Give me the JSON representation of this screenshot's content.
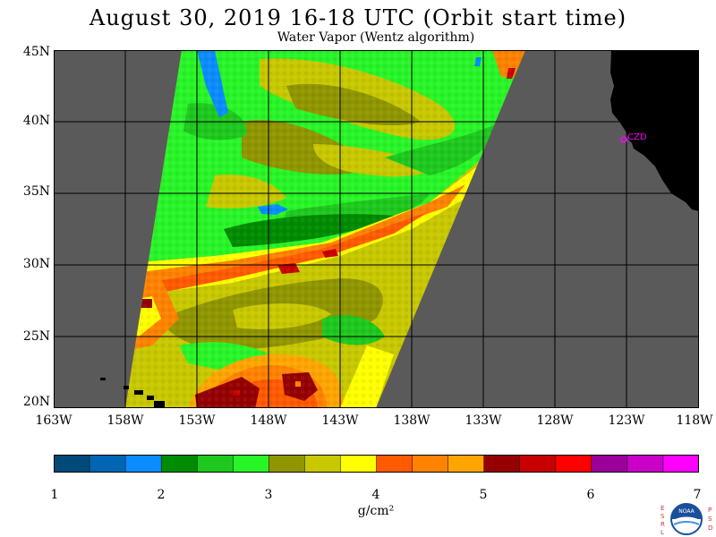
{
  "title": "August 30, 2019  16-18 UTC  (Orbit start time)",
  "subtitle": "Water Vapor (Wentz algorithm)",
  "lat_labels": [
    "45N",
    "40N",
    "35N",
    "30N",
    "25N",
    "20N"
  ],
  "lon_labels": [
    "163W",
    "158W",
    "153W",
    "148W",
    "143W",
    "138W",
    "133W",
    "128W",
    "123W",
    "118W"
  ],
  "station_label": "CZD",
  "colorbar": {
    "ticks": [
      "1",
      "2",
      "3",
      "4",
      "5",
      "6",
      "7"
    ],
    "units": "g/cm²",
    "colors": [
      "#004a7a",
      "#0066b4",
      "#0a8cff",
      "#008c00",
      "#1ec81e",
      "#28f528",
      "#909600",
      "#c8c800",
      "#ffff00",
      "#ff5a00",
      "#ff8200",
      "#ffa500",
      "#960000",
      "#c80000",
      "#ff0000",
      "#9b009b",
      "#c800c8",
      "#ff00ff"
    ]
  },
  "colors": {
    "missing": "#5a5a5a",
    "land": "#000000",
    "station": "#ff00ff"
  },
  "logo": {
    "text": "NOAA",
    "left_letters": "ESRL",
    "right_letters": "PSD"
  }
}
